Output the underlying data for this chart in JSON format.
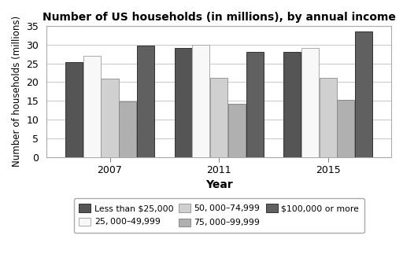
{
  "title": "Number of US households (in millions), by annual income",
  "xlabel": "Year",
  "ylabel": "Number of households (millions)",
  "years": [
    "2007",
    "2011",
    "2015"
  ],
  "categories": [
    "Less than $25,000",
    "$25,000–$49,999",
    "$50,000–$74,999",
    "$75,000–$99,999",
    "$100,000 or more"
  ],
  "values": {
    "Less than $25,000": [
      25.3,
      29.0,
      28.1
    ],
    "$25,000–$49,999": [
      27.0,
      30.0,
      29.0
    ],
    "$50,000–$74,999": [
      21.0,
      21.2,
      21.1
    ],
    "$75,000–$99,999": [
      14.8,
      14.2,
      15.3
    ],
    "$100,000 or more": [
      29.7,
      28.0,
      33.5
    ]
  },
  "colors": [
    "#555555",
    "#f8f8f8",
    "#d0d0d0",
    "#b0b0b0",
    "#606060"
  ],
  "bar_edge_colors": [
    "#333333",
    "#aaaaaa",
    "#999999",
    "#888888",
    "#333333"
  ],
  "ylim": [
    0,
    35
  ],
  "yticks": [
    0,
    5,
    10,
    15,
    20,
    25,
    30,
    35
  ],
  "legend_ncol": 3,
  "background_color": "#ffffff",
  "grid_color": "#cccccc"
}
